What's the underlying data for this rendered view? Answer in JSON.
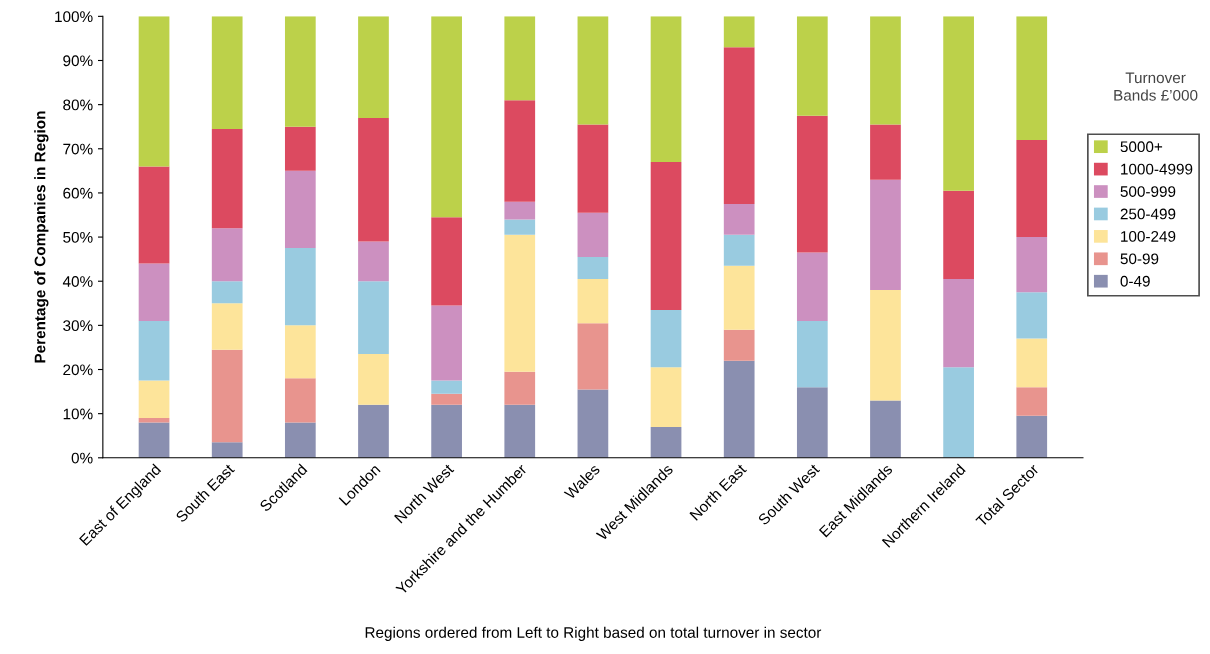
{
  "chart_data": {
    "type": "bar",
    "stacked": true,
    "ylabel": "Perentage of Companies in Region",
    "xlabel": "Regions ordered from Left to Right based on total turnover in sector",
    "legend_title": "Turnover\nBands £’000",
    "legend": "right",
    "grid": false,
    "categories": [
      "East of England",
      "South East",
      "Scotland",
      "London",
      "North West",
      "Yorkshire and the Humber",
      "Wales",
      "West Midlands",
      "North East",
      "South West",
      "East Midlands",
      "Northern Ireland",
      "Total Sector"
    ],
    "ylim": [
      0,
      100
    ],
    "yticks": [
      {
        "value": 0,
        "label": "0%"
      },
      {
        "value": 10,
        "label": "10%"
      },
      {
        "value": 20,
        "label": "20%"
      },
      {
        "value": 30,
        "label": "30%"
      },
      {
        "value": 40,
        "label": "40%"
      },
      {
        "value": 50,
        "label": "50%"
      },
      {
        "value": 60,
        "label": "60%"
      },
      {
        "value": 70,
        "label": "70%"
      },
      {
        "value": 80,
        "label": "80%"
      },
      {
        "value": 90,
        "label": "90%"
      },
      {
        "value": 100,
        "label": "100%"
      }
    ],
    "series": [
      {
        "name": "0-49",
        "color": "#8a8fb0",
        "values": [
          8,
          3.5,
          8,
          12,
          12,
          12,
          15.5,
          7,
          22,
          16,
          13,
          0,
          9.5
        ]
      },
      {
        "name": "50-99",
        "color": "#e8948e",
        "values": [
          1,
          21,
          10,
          0,
          2.5,
          7.5,
          15,
          0,
          7,
          0,
          0,
          0,
          6.5
        ]
      },
      {
        "name": "100-249",
        "color": "#fde49a",
        "values": [
          8.5,
          10.5,
          12,
          11.5,
          0,
          31,
          10,
          13.5,
          14.5,
          0,
          25,
          0,
          11
        ]
      },
      {
        "name": "250-499",
        "color": "#99cbe0",
        "values": [
          13.5,
          5,
          17.5,
          16.5,
          3,
          3.5,
          5,
          13,
          7,
          15,
          0,
          20.5,
          10.5
        ]
      },
      {
        "name": "500-999",
        "color": "#cc90c0",
        "values": [
          13,
          12,
          17.5,
          9,
          17,
          4,
          10,
          0,
          7,
          15.5,
          25,
          20,
          12.5
        ]
      },
      {
        "name": "1000-4999",
        "color": "#dc4a60",
        "values": [
          22,
          22.5,
          10,
          28,
          20,
          23,
          20,
          33.5,
          35.5,
          31,
          12.5,
          20,
          22
        ]
      },
      {
        "name": "5000+",
        "color": "#bcd14a",
        "values": [
          34,
          25.5,
          25,
          23,
          45.5,
          19,
          24.5,
          33,
          7,
          22.5,
          24.5,
          39.5,
          28
        ]
      }
    ]
  }
}
